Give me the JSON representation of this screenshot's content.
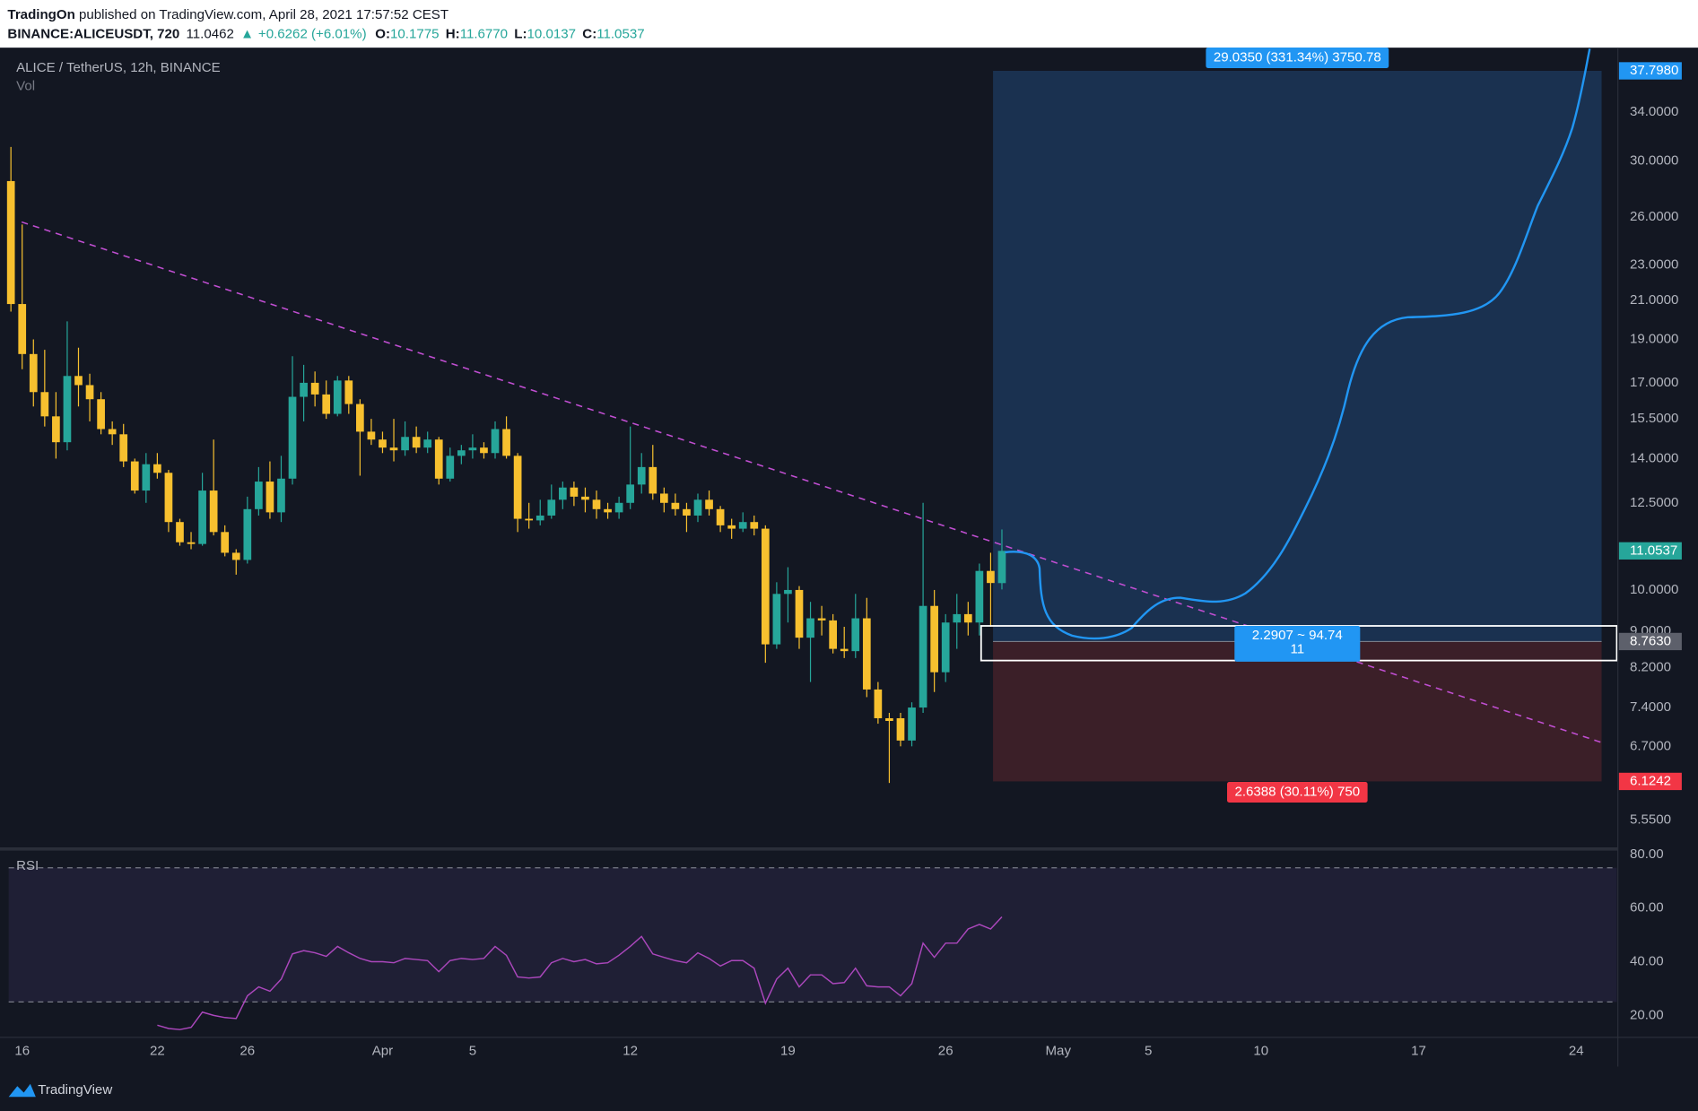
{
  "header": {
    "publisher": "TradingOn",
    "published": " published on TradingView.com, April 28, 2021 17:57:52 CEST",
    "symbol": "BINANCE:ALICEUSDT, 720",
    "last": "11.0462",
    "arrow": "▲",
    "change": "+0.6262 (+6.01%)",
    "ohlc": [
      {
        "label": "O:",
        "value": "10.1775"
      },
      {
        "label": "H:",
        "value": "11.6770"
      },
      {
        "label": "L:",
        "value": "10.0137"
      },
      {
        "label": "C:",
        "value": "11.0537"
      }
    ]
  },
  "chart_data": [
    {
      "type": "candlestick",
      "title": "ALICE / TetherUS, 12h, BINANCE",
      "volume_label": "Vol",
      "log_scale": true,
      "up_color": "#26a69a",
      "down_color": "#f7c02f",
      "open": [
        28.5,
        20.8,
        18.3,
        16.6,
        15.6,
        14.6,
        17.3,
        16.9,
        16.3,
        15.1,
        14.9,
        13.9,
        12.9,
        13.8,
        13.5,
        11.9,
        11.3,
        11.25,
        12.9,
        11.6,
        11.0,
        10.8,
        12.3,
        13.2,
        12.2,
        13.3,
        16.4,
        17.0,
        16.5,
        15.7,
        17.1,
        16.1,
        15.0,
        14.7,
        14.4,
        14.3,
        14.8,
        14.4,
        14.7,
        13.3,
        14.1,
        14.3,
        14.4,
        14.2,
        15.1,
        14.1,
        12.0,
        11.95,
        12.1,
        12.6,
        13.0,
        12.7,
        12.6,
        12.3,
        12.2,
        12.5,
        13.1,
        13.7,
        12.8,
        12.5,
        12.3,
        12.1,
        12.6,
        12.3,
        11.8,
        11.7,
        11.9,
        11.7,
        8.7,
        9.9,
        10.0,
        8.85,
        9.3,
        9.25,
        8.6,
        8.55,
        9.3,
        7.75,
        7.2,
        7.2,
        6.8,
        7.4,
        9.6,
        8.1,
        9.2,
        9.4,
        9.2,
        10.5,
        10.1775
      ],
      "high": [
        31.1,
        25.5,
        19.0,
        18.5,
        16.6,
        19.9,
        18.6,
        17.4,
        16.6,
        15.4,
        15.3,
        14.0,
        14.2,
        14.2,
        13.6,
        12.0,
        11.6,
        13.5,
        14.7,
        11.8,
        11.1,
        12.7,
        13.7,
        13.9,
        14.1,
        18.2,
        17.8,
        17.5,
        17.1,
        17.3,
        17.3,
        16.3,
        15.5,
        15.0,
        15.5,
        15.4,
        15.2,
        15.0,
        14.8,
        14.4,
        14.5,
        14.9,
        14.6,
        15.4,
        15.6,
        14.2,
        12.5,
        12.6,
        13.1,
        13.2,
        13.2,
        13.0,
        12.9,
        12.5,
        12.7,
        15.2,
        14.2,
        14.5,
        13.0,
        12.8,
        12.5,
        12.8,
        12.9,
        12.4,
        12.0,
        12.2,
        12.1,
        11.8,
        10.2,
        10.6,
        10.1,
        9.7,
        9.6,
        9.4,
        9.1,
        9.9,
        9.8,
        7.9,
        7.3,
        7.3,
        7.5,
        12.5,
        10.0,
        9.4,
        9.9,
        9.7,
        10.7,
        11.0,
        11.677
      ],
      "low": [
        20.4,
        17.6,
        16.0,
        15.2,
        14.0,
        14.3,
        16.0,
        15.4,
        14.9,
        14.5,
        13.7,
        12.8,
        12.5,
        13.3,
        11.6,
        11.2,
        11.1,
        11.2,
        11.5,
        10.9,
        10.4,
        10.7,
        12.1,
        12.0,
        11.9,
        13.1,
        15.4,
        16.0,
        15.5,
        15.6,
        15.7,
        13.4,
        14.5,
        14.2,
        13.9,
        14.1,
        14.2,
        14.2,
        13.1,
        13.2,
        13.8,
        14.0,
        14.0,
        14.0,
        14.0,
        11.6,
        11.7,
        11.8,
        12.0,
        12.3,
        12.4,
        12.2,
        12.0,
        12.0,
        12.0,
        12.3,
        12.8,
        12.6,
        12.2,
        12.1,
        11.6,
        11.9,
        12.1,
        11.6,
        11.4,
        11.6,
        11.5,
        8.3,
        8.6,
        9.2,
        8.6,
        7.9,
        8.9,
        8.5,
        8.4,
        8.4,
        7.6,
        7.1,
        6.1,
        6.7,
        6.7,
        7.3,
        7.7,
        7.9,
        8.6,
        8.9,
        8.9,
        9.1,
        10.0137
      ],
      "close": [
        20.8,
        18.3,
        16.6,
        15.6,
        14.6,
        17.3,
        16.9,
        16.3,
        15.1,
        14.9,
        13.9,
        12.9,
        13.8,
        13.5,
        11.9,
        11.3,
        11.25,
        12.9,
        11.6,
        11.0,
        10.8,
        12.3,
        13.2,
        12.2,
        13.3,
        16.4,
        17.0,
        16.5,
        15.7,
        17.1,
        16.1,
        15.0,
        14.7,
        14.4,
        14.3,
        14.8,
        14.4,
        14.7,
        13.3,
        14.1,
        14.3,
        14.4,
        14.2,
        15.1,
        14.1,
        12.0,
        11.95,
        12.1,
        12.6,
        13.0,
        12.7,
        12.6,
        12.3,
        12.2,
        12.5,
        13.1,
        13.7,
        12.8,
        12.5,
        12.3,
        12.1,
        12.6,
        12.3,
        11.8,
        11.7,
        11.9,
        11.7,
        8.7,
        9.9,
        10.0,
        8.85,
        9.3,
        9.25,
        8.6,
        8.55,
        9.3,
        7.75,
        7.2,
        7.15,
        6.8,
        7.4,
        9.6,
        8.1,
        9.2,
        9.4,
        9.2,
        10.5,
        10.18,
        11.0537
      ],
      "xlim": [
        -0.2,
        142.6
      ],
      "ylim": [
        5.18,
        40.0
      ],
      "yticks": [
        {
          "value": 34,
          "label": "34.0000"
        },
        {
          "value": 30,
          "label": "30.0000"
        },
        {
          "value": 26,
          "label": "26.0000"
        },
        {
          "value": 23,
          "label": "23.0000"
        },
        {
          "value": 21,
          "label": "21.0000"
        },
        {
          "value": 19,
          "label": "19.0000"
        },
        {
          "value": 17,
          "label": "17.0000"
        },
        {
          "value": 15.5,
          "label": "15.5000"
        },
        {
          "value": 14,
          "label": "14.0000"
        },
        {
          "value": 12.5,
          "label": "12.5000"
        },
        {
          "value": 10,
          "label": "10.0000"
        },
        {
          "value": 9,
          "label": "9.0000"
        },
        {
          "value": 8.2,
          "label": "8.2000"
        },
        {
          "value": 7.4,
          "label": "7.4000"
        },
        {
          "value": 6.7,
          "label": "6.7000"
        },
        {
          "value": 5.55,
          "label": "5.5500"
        }
      ],
      "price_labels": [
        {
          "value": 37.798,
          "label": "37.7980",
          "color": "#2196f3"
        },
        {
          "value": 11.0537,
          "label": "11.0537",
          "color": "#26a69a"
        },
        {
          "value": 8.763,
          "label": "8.7630",
          "color": "#5d606b"
        },
        {
          "value": 6.1242,
          "label": "6.1242",
          "color": "#f23645"
        }
      ],
      "position": {
        "target": 37.798,
        "entry": 8.763,
        "stop": 6.1242,
        "target_label": "29.0350 (331.34%) 3750.78",
        "stop_label": "2.6388 (30.11%) 750"
      }
    },
    {
      "type": "line",
      "title": "RSI",
      "xlim": [
        -0.2,
        142.6
      ],
      "ylim": [
        12.2,
        80.8
      ],
      "yticks": [
        {
          "value": 80,
          "label": "80.00"
        },
        {
          "value": 60,
          "label": "60.00"
        },
        {
          "value": 40,
          "label": "40.00"
        },
        {
          "value": 20,
          "label": "20.00"
        }
      ],
      "bands": [
        25,
        75
      ],
      "series": [
        {
          "name": "RSI",
          "color": "#ab47bc",
          "values": [
            null,
            null,
            null,
            null,
            null,
            null,
            null,
            null,
            null,
            null,
            null,
            null,
            null,
            16.3,
            15.1,
            14.7,
            15.5,
            21.2,
            20.0,
            19.2,
            18.8,
            27.3,
            30.6,
            29.0,
            33.5,
            42.9,
            44.1,
            43.3,
            42.0,
            45.7,
            43.3,
            41.2,
            40.0,
            40.0,
            39.6,
            41.2,
            40.8,
            40.4,
            36.3,
            40.4,
            41.2,
            40.8,
            41.2,
            45.7,
            42.4,
            34.3,
            33.9,
            34.3,
            39.6,
            41.2,
            40.0,
            40.8,
            39.2,
            39.6,
            42.4,
            45.7,
            49.4,
            42.9,
            41.6,
            40.4,
            39.6,
            43.3,
            41.2,
            38.4,
            40.4,
            40.4,
            37.6,
            24.5,
            33.5,
            37.6,
            30.6,
            35.1,
            35.1,
            31.8,
            32.2,
            37.6,
            31.0,
            30.6,
            30.6,
            27.3,
            31.8,
            46.9,
            41.6,
            46.9,
            46.9,
            52.2,
            53.9,
            52.2,
            56.7
          ]
        }
      ],
      "xticks": [
        {
          "value": 1,
          "label": "16"
        },
        {
          "value": 13,
          "label": "22"
        },
        {
          "value": 21,
          "label": "26"
        },
        {
          "value": 33,
          "label": "Apr"
        },
        {
          "value": 41,
          "label": "5"
        },
        {
          "value": 55,
          "label": "12"
        },
        {
          "value": 69,
          "label": "19"
        },
        {
          "value": 83,
          "label": "26"
        },
        {
          "value": 93,
          "label": "May"
        },
        {
          "value": 101,
          "label": "5"
        },
        {
          "value": 111,
          "label": "10"
        },
        {
          "value": 125,
          "label": "17"
        },
        {
          "value": 139,
          "label": "24"
        }
      ]
    }
  ],
  "measure": {
    "label": "2.2907 ~ 94.74",
    "bars": "11"
  },
  "footer": {
    "brand": "TradingView"
  }
}
